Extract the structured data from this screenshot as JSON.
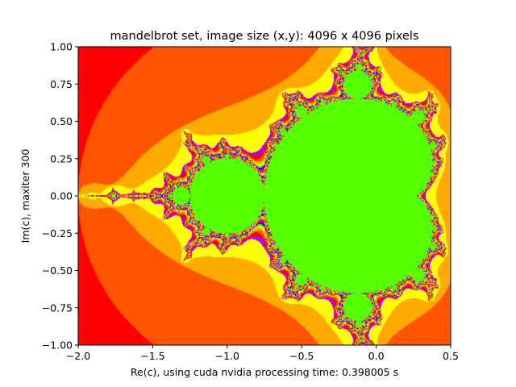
{
  "chart_data": {
    "type": "heatmap",
    "title": "mandelbrot set, image size (x,y): 4096 x 4096 pixels",
    "xlabel": "Re(c), using cuda nvidia processing time: 0.398005 s",
    "ylabel": "Im(c), maxiter 300",
    "xlim": [
      -2.0,
      0.5
    ],
    "ylim": [
      -1.0,
      1.0
    ],
    "x_ticks": [
      -2.0,
      -1.5,
      -1.0,
      -0.5,
      0.0,
      0.5
    ],
    "x_tick_labels": [
      "−2.0",
      "−1.5",
      "−1.0",
      "−0.5",
      "0.0",
      "0.5"
    ],
    "y_ticks": [
      -1.0,
      -0.75,
      -0.5,
      -0.25,
      0.0,
      0.25,
      0.5,
      0.75,
      1.0
    ],
    "y_tick_labels": [
      "−1.00",
      "−0.75",
      "−0.50",
      "−0.25",
      "0.00",
      "0.25",
      "0.50",
      "0.75",
      "1.00"
    ],
    "maxiter": 300,
    "colormap": "prism",
    "colors": {
      "interior": "#55ff00",
      "outer": "#ff0000",
      "band_orange": "#ff5500",
      "band_amber": "#ffaa00",
      "band_yellow": "#ffff00",
      "band_blue": "#0000ff",
      "band_violet": "#aa00ff"
    }
  }
}
